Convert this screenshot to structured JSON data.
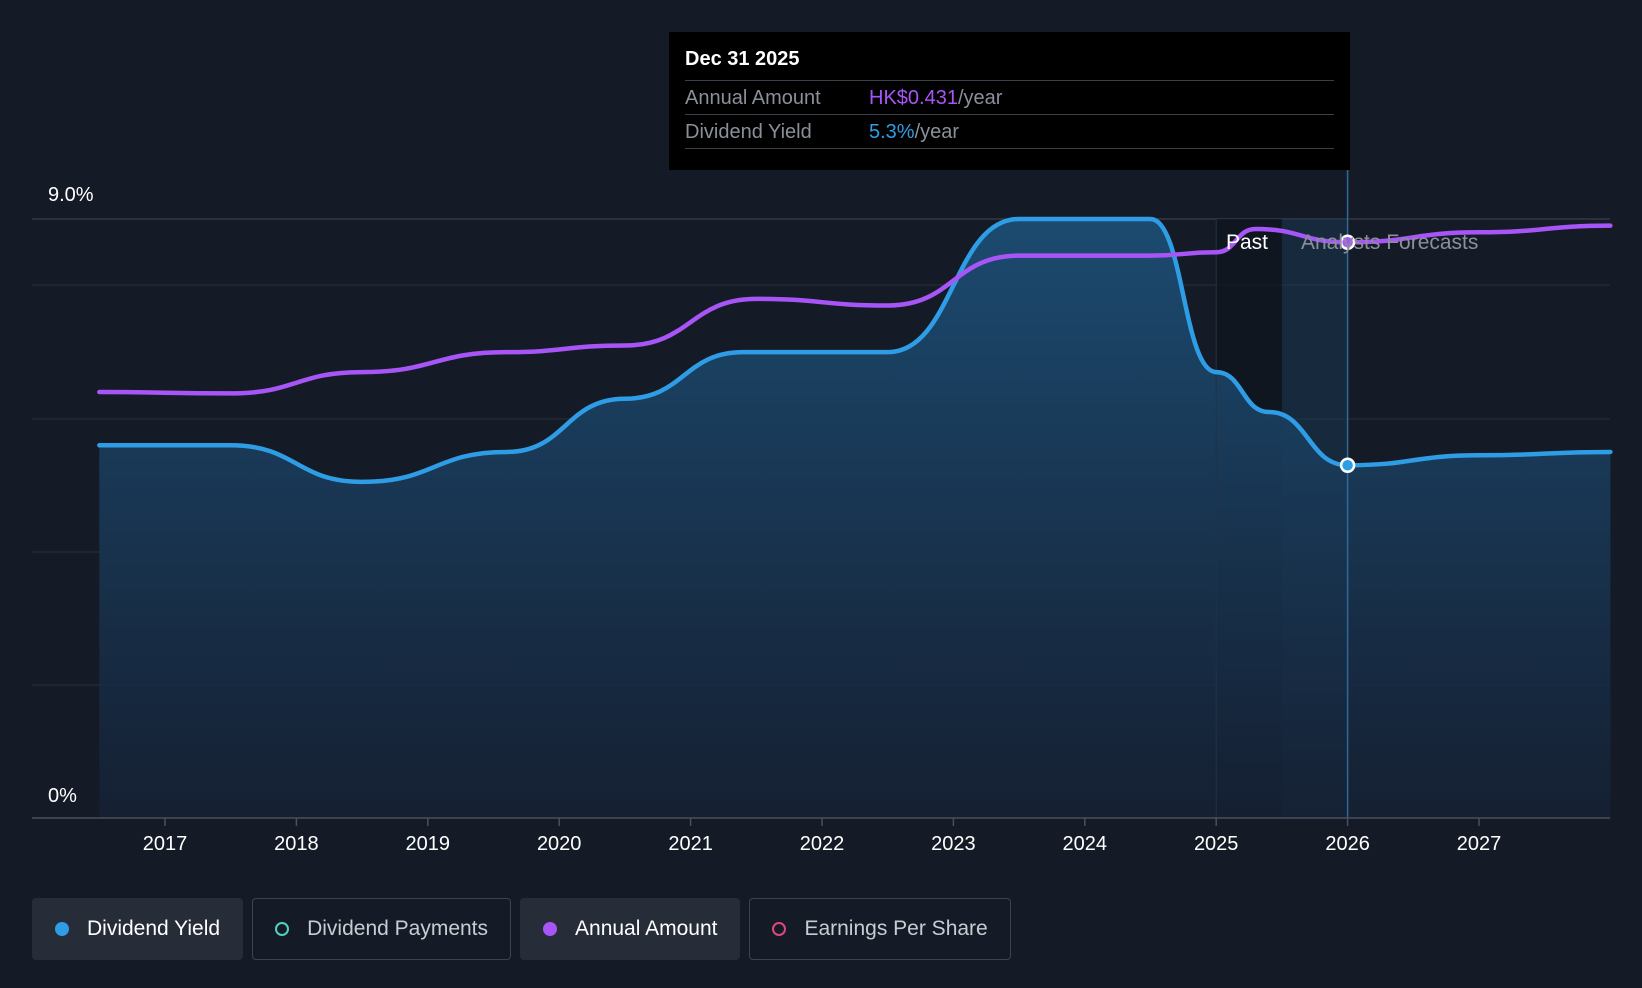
{
  "tooltip": {
    "date": "Dec 31 2025",
    "rows": [
      {
        "label": "Annual Amount",
        "value": "HK$0.431",
        "unit": "/year"
      },
      {
        "label": "Dividend Yield",
        "value": "5.3%",
        "unit": "/year"
      }
    ]
  },
  "regions": {
    "past": "Past",
    "forecast": "Analysts Forecasts"
  },
  "legend": [
    {
      "label": "Dividend Yield",
      "color": "#2f9de5",
      "filled": true,
      "active": true
    },
    {
      "label": "Dividend Payments",
      "color": "#4fd1c5",
      "filled": false,
      "active": false
    },
    {
      "label": "Annual Amount",
      "color": "#a855f7",
      "filled": true,
      "active": true
    },
    {
      "label": "Earnings Per Share",
      "color": "#e0457b",
      "filled": false,
      "active": false
    }
  ],
  "chart_data": {
    "type": "line",
    "y_tick_labels": [
      "0%",
      "9.0%"
    ],
    "ylim": [
      0,
      9
    ],
    "xlim": [
      2016.0,
      2028.0
    ],
    "x_ticks": [
      "2017",
      "2018",
      "2019",
      "2020",
      "2021",
      "2022",
      "2023",
      "2024",
      "2025",
      "2026",
      "2027"
    ],
    "past_end": 2025.0,
    "forecast_start": 2025.5,
    "marker_x": 2026.0,
    "series": [
      {
        "name": "Dividend Yield",
        "color": "#2f9de5",
        "points": [
          [
            2016.5,
            5.6
          ],
          [
            2017.5,
            5.6
          ],
          [
            2018.5,
            5.05
          ],
          [
            2019.6,
            5.5
          ],
          [
            2020.5,
            6.3
          ],
          [
            2021.4,
            7.0
          ],
          [
            2022.5,
            7.0
          ],
          [
            2023.5,
            9.0
          ],
          [
            2024.5,
            9.0
          ],
          [
            2025.0,
            6.7
          ],
          [
            2025.4,
            6.1
          ],
          [
            2026.0,
            5.3
          ],
          [
            2027.0,
            5.45
          ],
          [
            2028.0,
            5.5
          ]
        ]
      },
      {
        "name": "Annual Amount",
        "color": "#a855f7",
        "points": [
          [
            2016.5,
            6.4
          ],
          [
            2017.5,
            6.38
          ],
          [
            2018.5,
            6.7
          ],
          [
            2019.6,
            7.0
          ],
          [
            2020.5,
            7.1
          ],
          [
            2021.5,
            7.8
          ],
          [
            2022.5,
            7.7
          ],
          [
            2023.5,
            8.45
          ],
          [
            2024.5,
            8.45
          ],
          [
            2025.0,
            8.5
          ],
          [
            2025.3,
            8.85
          ],
          [
            2026.0,
            8.65
          ],
          [
            2027.0,
            8.8
          ],
          [
            2028.0,
            8.9
          ]
        ]
      }
    ]
  }
}
